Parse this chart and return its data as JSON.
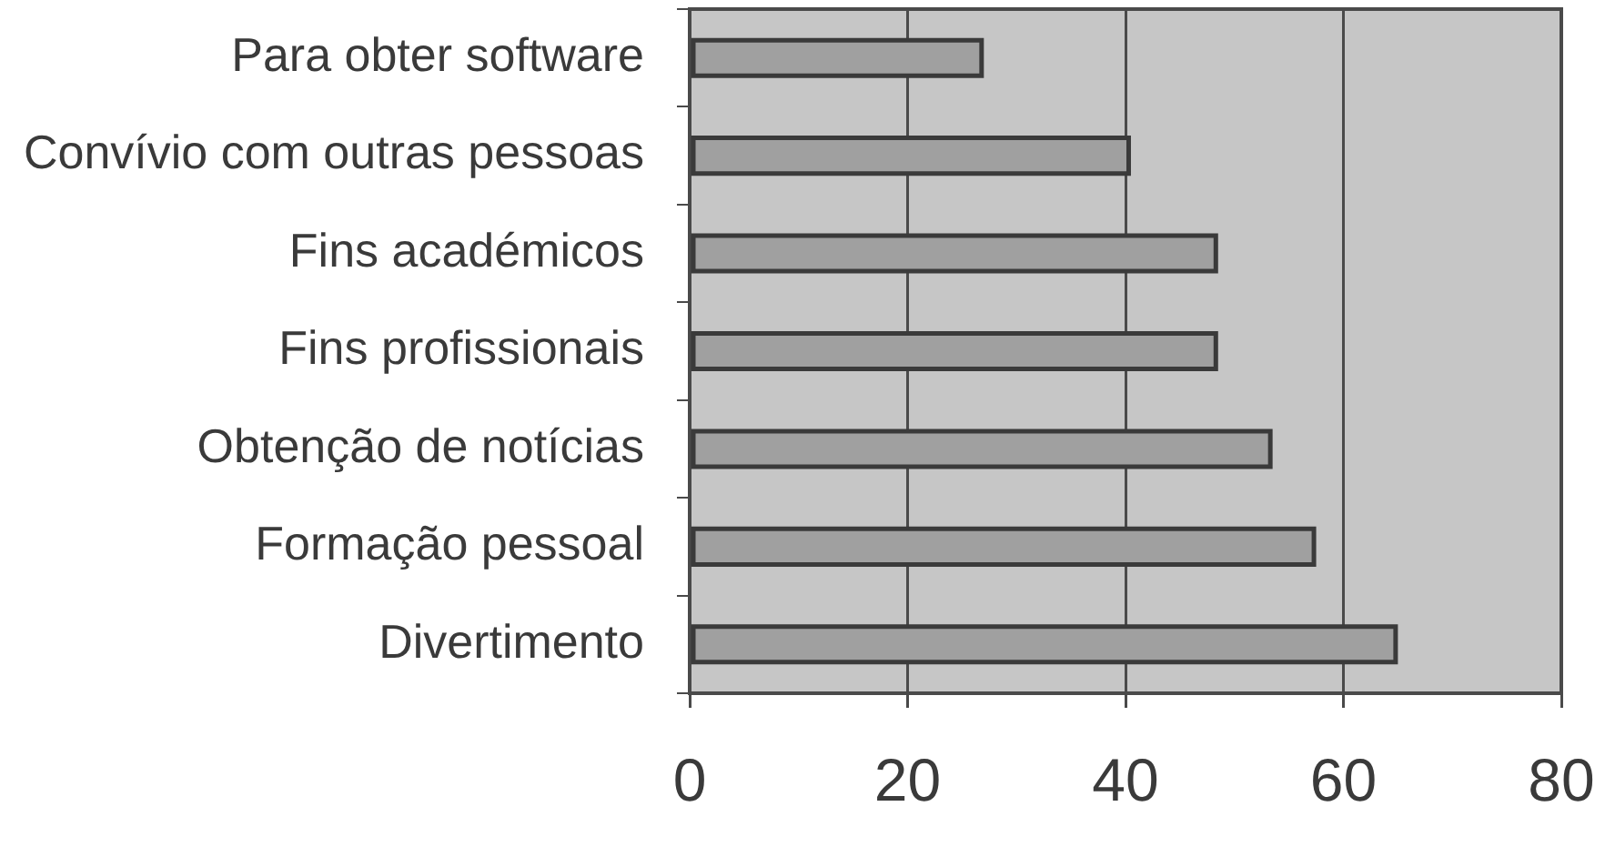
{
  "chart_data": {
    "type": "bar",
    "orientation": "horizontal",
    "categories": [
      "Para obter software",
      "Convívio com outras pessoas",
      "Fins académicos",
      "Fins profissionais",
      "Obtenção de notícias",
      "Formação pessoal",
      "Divertimento"
    ],
    "values": [
      27,
      40.5,
      48.5,
      48.5,
      53.5,
      57.5,
      65
    ],
    "color": "#a0a0a0",
    "xlim": [
      0,
      80
    ],
    "xticks": [
      0,
      20,
      40,
      60,
      80
    ],
    "grid": "x"
  }
}
